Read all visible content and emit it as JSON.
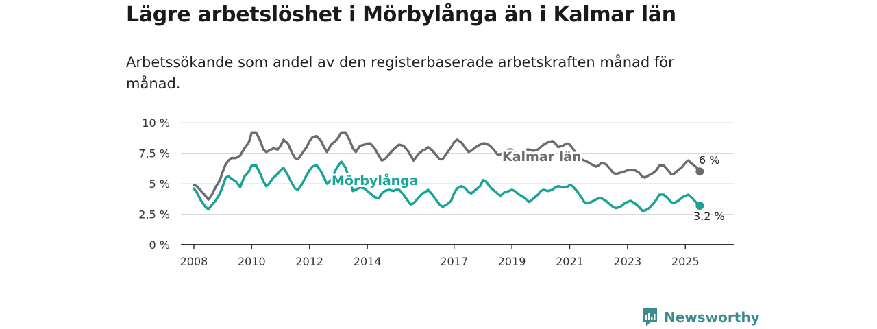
{
  "title": "Lägre arbetslöshet i Mörbylånga än i Kalmar län",
  "subtitle": "Arbetssökande som andel av den registerbaserade arbetskraften månad för månad.",
  "brand": {
    "name": "Newsworthy",
    "icon": "newsworthy-logo-icon",
    "color": "#3b8c8c"
  },
  "chart_data": {
    "type": "line",
    "ylim": [
      0,
      10
    ],
    "y_ticks": [
      {
        "value": 0,
        "label": "0 %"
      },
      {
        "value": 2.5,
        "label": "2,5 %"
      },
      {
        "value": 5,
        "label": "5 %"
      },
      {
        "value": 7.5,
        "label": "7,5 %"
      },
      {
        "value": 10,
        "label": "10 %"
      }
    ],
    "x_range": [
      2007.55,
      2026.7
    ],
    "x_ticks": [
      {
        "value": 2008,
        "label": "2008"
      },
      {
        "value": 2010,
        "label": "2010"
      },
      {
        "value": 2012,
        "label": "2012"
      },
      {
        "value": 2014,
        "label": "2014"
      },
      {
        "value": 2017,
        "label": "2017"
      },
      {
        "value": 2019,
        "label": "2019"
      },
      {
        "value": 2021,
        "label": "2021"
      },
      {
        "value": 2023,
        "label": "2023"
      },
      {
        "value": 2025,
        "label": "2025"
      }
    ],
    "grid": true,
    "series": [
      {
        "name": "Kalmar län",
        "color": "#6b6b70",
        "end_label": "6 %",
        "x": [
          2008.0,
          2008.1,
          2008.25,
          2008.4,
          2008.5,
          2008.6,
          2008.75,
          2008.9,
          2009.0,
          2009.1,
          2009.2,
          2009.3,
          2009.45,
          2009.6,
          2009.75,
          2009.9,
          2010.0,
          2010.15,
          2010.3,
          2010.4,
          2010.5,
          2010.6,
          2010.75,
          2010.9,
          2011.0,
          2011.1,
          2011.25,
          2011.4,
          2011.5,
          2011.6,
          2011.75,
          2011.9,
          2012.0,
          2012.1,
          2012.25,
          2012.4,
          2012.5,
          2012.6,
          2012.75,
          2012.9,
          2013.0,
          2013.1,
          2013.25,
          2013.4,
          2013.5,
          2013.6,
          2013.75,
          2013.9,
          2014.0,
          2014.1,
          2014.25,
          2014.4,
          2014.5,
          2014.6,
          2014.75,
          2014.9,
          2015.0,
          2015.1,
          2015.25,
          2015.4,
          2015.5,
          2015.6,
          2015.75,
          2015.9,
          2016.0,
          2016.1,
          2016.25,
          2016.4,
          2016.5,
          2016.6,
          2016.75,
          2016.9,
          2017.0,
          2017.1,
          2017.25,
          2017.4,
          2017.5,
          2017.6,
          2017.75,
          2017.9,
          2018.0,
          2018.1,
          2018.25,
          2018.4,
          2018.5,
          2018.6,
          2018.75,
          2018.9,
          2019.0,
          2019.1,
          2019.25,
          2019.4,
          2019.5,
          2019.6,
          2019.75,
          2019.9,
          2020.0,
          2020.1,
          2020.25,
          2020.4,
          2020.5,
          2020.6,
          2020.75,
          2020.9,
          2021.0,
          2021.1,
          2021.25,
          2021.4,
          2021.5,
          2021.6,
          2021.75,
          2021.9,
          2022.0,
          2022.1,
          2022.25,
          2022.4,
          2022.5,
          2022.6,
          2022.75,
          2022.9,
          2023.0,
          2023.1,
          2023.25,
          2023.4,
          2023.5,
          2023.6,
          2023.75,
          2023.9,
          2024.0,
          2024.1,
          2024.25,
          2024.4,
          2024.5,
          2024.6,
          2024.75,
          2024.9,
          2025.0,
          2025.1,
          2025.25,
          2025.4,
          2025.5
        ],
        "values": [
          4.9,
          4.8,
          4.4,
          4.0,
          3.7,
          4.0,
          4.7,
          5.3,
          6.0,
          6.6,
          6.9,
          7.1,
          7.1,
          7.3,
          7.9,
          8.4,
          9.2,
          9.2,
          8.5,
          7.8,
          7.6,
          7.7,
          7.9,
          7.8,
          8.1,
          8.6,
          8.3,
          7.5,
          7.1,
          7.0,
          7.5,
          8.0,
          8.5,
          8.8,
          8.9,
          8.5,
          8.0,
          7.6,
          8.2,
          8.5,
          8.8,
          9.2,
          9.2,
          8.5,
          7.9,
          7.6,
          8.1,
          8.2,
          8.3,
          8.3,
          7.9,
          7.3,
          6.9,
          7.0,
          7.4,
          7.8,
          8.0,
          8.2,
          8.1,
          7.7,
          7.3,
          6.9,
          7.4,
          7.7,
          7.8,
          8.0,
          7.7,
          7.3,
          7.0,
          7.0,
          7.5,
          8.0,
          8.4,
          8.6,
          8.4,
          7.9,
          7.6,
          7.7,
          8.0,
          8.2,
          8.3,
          8.3,
          8.1,
          7.7,
          7.4,
          7.4,
          7.6,
          7.8,
          7.8,
          7.6,
          7.4,
          7.6,
          7.8,
          7.8,
          7.7,
          7.8,
          8.0,
          8.2,
          8.4,
          8.5,
          8.3,
          8.0,
          8.1,
          8.3,
          8.2,
          7.9,
          7.4,
          7.0,
          6.9,
          6.8,
          6.6,
          6.4,
          6.5,
          6.7,
          6.6,
          6.2,
          5.9,
          5.8,
          5.9,
          6.0,
          6.1,
          6.1,
          6.1,
          5.9,
          5.6,
          5.5,
          5.7,
          5.9,
          6.1,
          6.5,
          6.5,
          6.1,
          5.8,
          5.8,
          6.1,
          6.4,
          6.7,
          6.9,
          6.6,
          6.3,
          6.0
        ]
      },
      {
        "name": "Mörbylånga",
        "color": "#17a396",
        "end_label": "3,2 %",
        "x": [
          2008.0,
          2008.1,
          2008.25,
          2008.4,
          2008.5,
          2008.6,
          2008.75,
          2008.9,
          2009.0,
          2009.1,
          2009.2,
          2009.3,
          2009.45,
          2009.6,
          2009.75,
          2009.9,
          2010.0,
          2010.15,
          2010.3,
          2010.4,
          2010.5,
          2010.6,
          2010.75,
          2010.9,
          2011.0,
          2011.1,
          2011.25,
          2011.4,
          2011.5,
          2011.6,
          2011.75,
          2011.9,
          2012.0,
          2012.1,
          2012.25,
          2012.4,
          2012.5,
          2012.6,
          2012.75,
          2012.9,
          2013.0,
          2013.1,
          2013.25,
          2013.4,
          2013.5,
          2013.6,
          2013.75,
          2013.9,
          2014.0,
          2014.1,
          2014.25,
          2014.4,
          2014.5,
          2014.6,
          2014.75,
          2014.9,
          2015.0,
          2015.1,
          2015.25,
          2015.4,
          2015.5,
          2015.6,
          2015.75,
          2015.9,
          2016.0,
          2016.1,
          2016.25,
          2016.4,
          2016.5,
          2016.6,
          2016.75,
          2016.9,
          2017.0,
          2017.1,
          2017.25,
          2017.4,
          2017.5,
          2017.6,
          2017.75,
          2017.9,
          2018.0,
          2018.1,
          2018.25,
          2018.4,
          2018.5,
          2018.6,
          2018.75,
          2018.9,
          2019.0,
          2019.1,
          2019.25,
          2019.4,
          2019.5,
          2019.6,
          2019.75,
          2019.9,
          2020.0,
          2020.1,
          2020.25,
          2020.4,
          2020.5,
          2020.6,
          2020.75,
          2020.9,
          2021.0,
          2021.1,
          2021.25,
          2021.4,
          2021.5,
          2021.6,
          2021.75,
          2021.9,
          2022.0,
          2022.1,
          2022.25,
          2022.4,
          2022.5,
          2022.6,
          2022.75,
          2022.9,
          2023.0,
          2023.1,
          2023.25,
          2023.4,
          2023.5,
          2023.6,
          2023.75,
          2023.9,
          2024.0,
          2024.1,
          2024.25,
          2024.4,
          2024.5,
          2024.6,
          2024.75,
          2024.9,
          2025.0,
          2025.1,
          2025.25,
          2025.4,
          2025.5
        ],
        "values": [
          4.6,
          4.3,
          3.6,
          3.1,
          2.9,
          3.2,
          3.6,
          4.2,
          4.8,
          5.5,
          5.6,
          5.4,
          5.2,
          4.7,
          5.6,
          6.0,
          6.5,
          6.5,
          5.8,
          5.2,
          4.8,
          5.0,
          5.5,
          5.8,
          6.1,
          6.3,
          5.7,
          5.0,
          4.6,
          4.5,
          5.0,
          5.7,
          6.1,
          6.4,
          6.5,
          6.0,
          5.5,
          5.0,
          5.3,
          6.1,
          6.5,
          6.8,
          6.3,
          5.2,
          4.4,
          4.5,
          4.7,
          4.6,
          4.4,
          4.2,
          3.9,
          3.8,
          4.2,
          4.4,
          4.5,
          4.4,
          4.5,
          4.5,
          4.1,
          3.6,
          3.3,
          3.4,
          3.8,
          4.2,
          4.3,
          4.5,
          4.1,
          3.6,
          3.3,
          3.1,
          3.3,
          3.6,
          4.2,
          4.6,
          4.8,
          4.6,
          4.3,
          4.2,
          4.5,
          4.8,
          5.3,
          5.2,
          4.7,
          4.4,
          4.2,
          4.0,
          4.3,
          4.4,
          4.5,
          4.4,
          4.1,
          3.9,
          3.7,
          3.5,
          3.8,
          4.1,
          4.4,
          4.5,
          4.4,
          4.5,
          4.7,
          4.8,
          4.7,
          4.7,
          4.9,
          4.8,
          4.4,
          3.9,
          3.5,
          3.4,
          3.5,
          3.7,
          3.8,
          3.8,
          3.6,
          3.3,
          3.1,
          3.0,
          3.1,
          3.4,
          3.5,
          3.6,
          3.4,
          3.1,
          2.8,
          2.8,
          3.0,
          3.4,
          3.7,
          4.1,
          4.1,
          3.8,
          3.5,
          3.4,
          3.6,
          3.9,
          4.0,
          4.1,
          3.8,
          3.4,
          3.2
        ]
      }
    ]
  }
}
